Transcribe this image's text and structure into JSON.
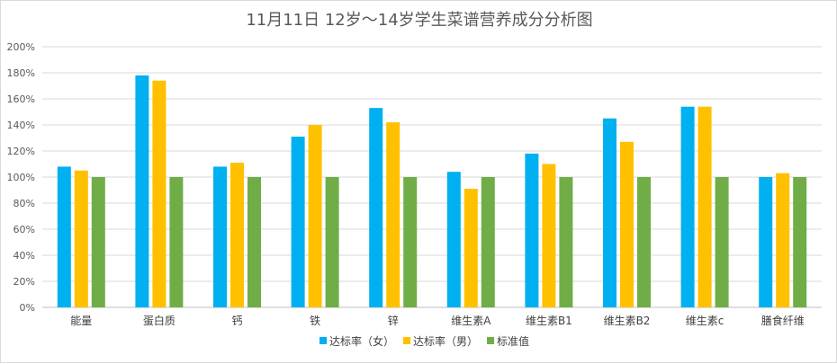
{
  "chart_data": {
    "type": "bar",
    "title": "11月11日 12岁～14岁学生菜谱营养成分分析图",
    "categories": [
      "能量",
      "蛋白质",
      "钙",
      "铁",
      "锌",
      "维生素A",
      "维生素B1",
      "维生素B2",
      "维生素c",
      "膳食纤维"
    ],
    "series": [
      {
        "name": "达标率（女）",
        "color": "#00b0f0",
        "values": [
          108,
          178,
          108,
          131,
          153,
          104,
          118,
          145,
          154,
          100
        ]
      },
      {
        "name": "达标率（男）",
        "color": "#ffc000",
        "values": [
          105,
          174,
          111,
          140,
          142,
          91,
          110,
          127,
          154,
          103
        ]
      },
      {
        "name": "标准值",
        "color": "#70ad47",
        "values": [
          100,
          100,
          100,
          100,
          100,
          100,
          100,
          100,
          100,
          100
        ]
      }
    ],
    "y_ticks": [
      "0%",
      "20%",
      "40%",
      "60%",
      "80%",
      "100%",
      "120%",
      "140%",
      "160%",
      "180%",
      "200%"
    ],
    "ylim": [
      0,
      200
    ],
    "unit": "%",
    "grid": true,
    "legend_position": "bottom"
  }
}
